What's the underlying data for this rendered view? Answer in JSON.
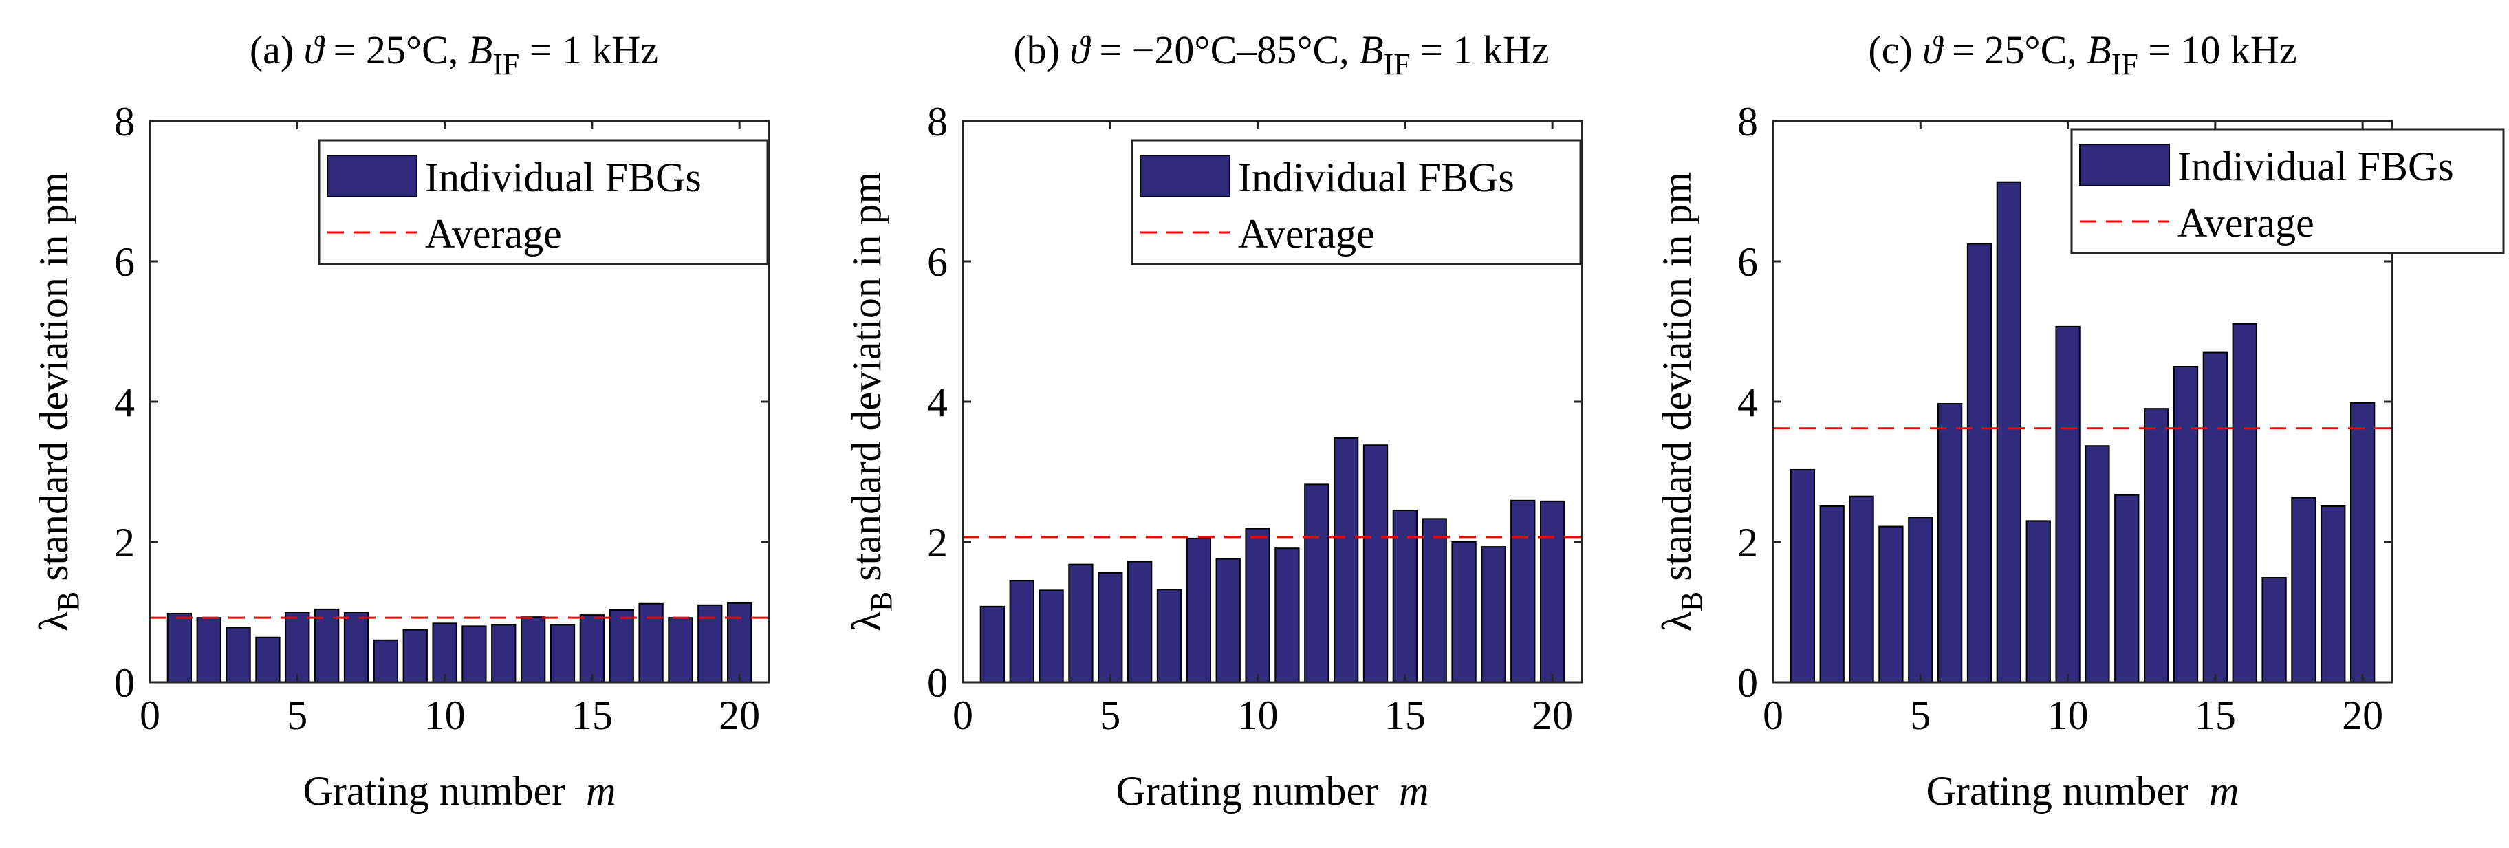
{
  "figure": {
    "xlabel": "Grating number",
    "xlabel_var": "m",
    "ylabel_symbol": "λ",
    "ylabel_sub": "B",
    "ylabel_rest": "standard deviation in pm",
    "legend_bar": "Individual FBGs",
    "legend_avg": "Average",
    "bar_color": "#312b7d",
    "avg_color": "#ff0000"
  },
  "panels": [
    {
      "title_prefix": "(a) ",
      "title_sym": "ϑ",
      "title_mid": " = 25°C, ",
      "title_b": "B",
      "title_sub": "IF",
      "title_suffix": " = 1 kHz"
    },
    {
      "title_prefix": "(b) ",
      "title_sym": "ϑ",
      "title_mid": " = −20°C–85°C, ",
      "title_b": "B",
      "title_sub": "IF",
      "title_suffix": " = 1 kHz"
    },
    {
      "title_prefix": "(c) ",
      "title_sym": "ϑ",
      "title_mid": " = 25°C, ",
      "title_b": "B",
      "title_sub": "IF",
      "title_suffix": " = 10 kHz"
    }
  ],
  "chart_data": [
    {
      "type": "bar",
      "title": "(a) ϑ = 25°C, B_IF = 1 kHz",
      "xlabel": "Grating number m",
      "ylabel": "λB standard deviation in pm",
      "x": [
        1,
        2,
        3,
        4,
        5,
        6,
        7,
        8,
        9,
        10,
        11,
        12,
        13,
        14,
        15,
        16,
        17,
        18,
        19,
        20
      ],
      "values": [
        0.98,
        0.92,
        0.78,
        0.64,
        0.99,
        1.04,
        0.99,
        0.6,
        0.75,
        0.84,
        0.8,
        0.82,
        0.93,
        0.82,
        0.96,
        1.03,
        1.12,
        0.92,
        1.1,
        1.13
      ],
      "average": 0.92,
      "xlim": [
        0,
        21
      ],
      "ylim": [
        0,
        8
      ],
      "xticks": [
        0,
        5,
        10,
        15,
        20
      ],
      "yticks": [
        0,
        2,
        4,
        6,
        8
      ],
      "legend": [
        "Individual FBGs",
        "Average"
      ],
      "legend_position": "top-right"
    },
    {
      "type": "bar",
      "title": "(b) ϑ = −20°C–85°C, B_IF = 1 kHz",
      "xlabel": "Grating number m",
      "ylabel": "λB standard deviation in pm",
      "x": [
        1,
        2,
        3,
        4,
        5,
        6,
        7,
        8,
        9,
        10,
        11,
        12,
        13,
        14,
        15,
        16,
        17,
        18,
        19,
        20
      ],
      "values": [
        1.08,
        1.45,
        1.31,
        1.68,
        1.56,
        1.72,
        1.32,
        2.05,
        1.76,
        2.19,
        1.91,
        2.82,
        3.48,
        3.38,
        2.45,
        2.33,
        2.0,
        1.93,
        2.59,
        2.58
      ],
      "average": 2.07,
      "xlim": [
        0,
        21
      ],
      "ylim": [
        0,
        8
      ],
      "xticks": [
        0,
        5,
        10,
        15,
        20
      ],
      "yticks": [
        0,
        2,
        4,
        6,
        8
      ],
      "legend": [
        "Individual FBGs",
        "Average"
      ],
      "legend_position": "top-right"
    },
    {
      "type": "bar",
      "title": "(c) ϑ = 25°C, B_IF = 10 kHz",
      "xlabel": "Grating number m",
      "ylabel": "λB standard deviation in pm",
      "x": [
        1,
        2,
        3,
        4,
        5,
        6,
        7,
        8,
        9,
        10,
        11,
        12,
        13,
        14,
        15,
        16,
        17,
        18,
        19,
        20
      ],
      "values": [
        3.03,
        2.51,
        2.65,
        2.22,
        2.35,
        3.97,
        6.25,
        7.13,
        2.3,
        5.07,
        3.37,
        2.67,
        3.9,
        4.5,
        4.7,
        5.11,
        1.49,
        2.63,
        2.51,
        3.98
      ],
      "average": 3.62,
      "xlim": [
        0,
        21
      ],
      "ylim": [
        0,
        8
      ],
      "xticks": [
        0,
        5,
        10,
        15,
        20
      ],
      "yticks": [
        0,
        2,
        4,
        6,
        8
      ],
      "legend": [
        "Individual FBGs",
        "Average"
      ],
      "legend_position": "top-right"
    }
  ]
}
